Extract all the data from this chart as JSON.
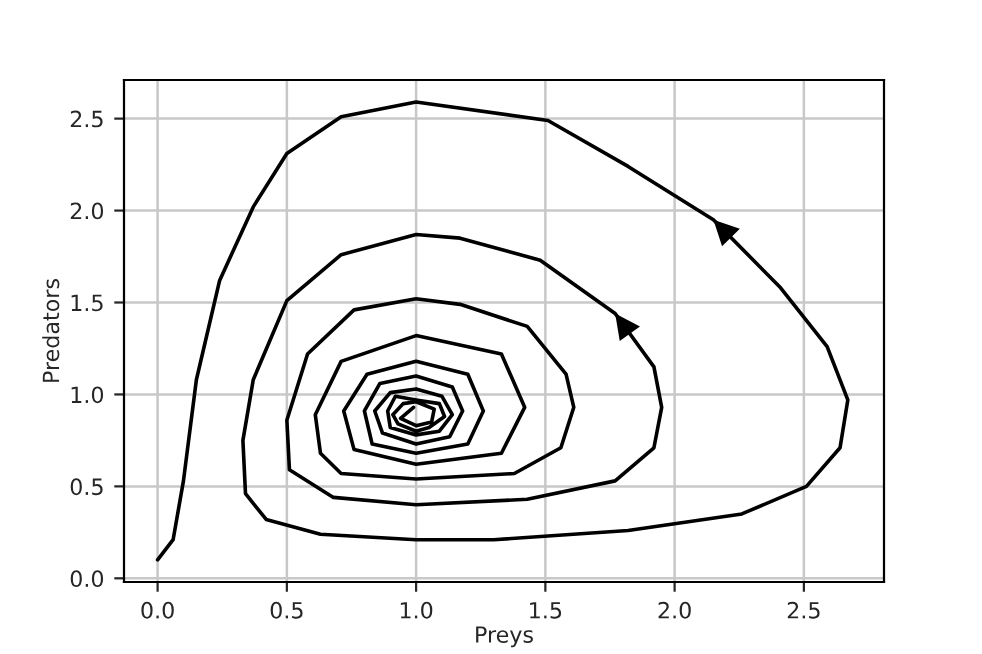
{
  "chart_data": {
    "type": "line",
    "xlabel": "Preys",
    "ylabel": "Predators",
    "xlim": [
      -0.13,
      2.81
    ],
    "ylim": [
      -0.02,
      2.71
    ],
    "xticks": [
      {
        "value": 0,
        "label": "0.0"
      },
      {
        "value": 0.5,
        "label": "0.5"
      },
      {
        "value": 1,
        "label": "1.0"
      },
      {
        "value": 1.5,
        "label": "1.5"
      },
      {
        "value": 2,
        "label": "2.0"
      },
      {
        "value": 2.5,
        "label": "2.5"
      }
    ],
    "yticks": [
      {
        "value": 0,
        "label": "0.0"
      },
      {
        "value": 0.5,
        "label": "0.5"
      },
      {
        "value": 1,
        "label": "1.0"
      },
      {
        "value": 1.5,
        "label": "1.5"
      },
      {
        "value": 2,
        "label": "2.0"
      },
      {
        "value": 2.5,
        "label": "2.5"
      }
    ],
    "grid": true,
    "marker": "none",
    "line_style": "solid",
    "series": [
      {
        "color": "#000000",
        "x": [
          0.0,
          0.06,
          0.1,
          0.15,
          0.24,
          0.37,
          0.5,
          0.71,
          1.0,
          1.51,
          1.82,
          2.15,
          2.41,
          2.59,
          2.67,
          2.64,
          2.51,
          2.26,
          1.82,
          1.3,
          1.0,
          0.63,
          0.42,
          0.34,
          0.33,
          0.37,
          0.5,
          0.71,
          1.0,
          1.17,
          1.48,
          1.77,
          1.92,
          1.95,
          1.92,
          1.77,
          1.43,
          1.0,
          0.68,
          0.51,
          0.5,
          0.58,
          0.76,
          1.0,
          1.17,
          1.43,
          1.58,
          1.61,
          1.56,
          1.38,
          1.0,
          0.71,
          0.63,
          0.61,
          0.71,
          1.0,
          1.33,
          1.42,
          1.33,
          1.0,
          0.76,
          0.72,
          0.81,
          1.0,
          1.2,
          1.26,
          1.2,
          1.0,
          0.83,
          0.8,
          0.86,
          1.0,
          1.14,
          1.18,
          1.13,
          1.0,
          0.87,
          0.84,
          0.9,
          1.0,
          1.1,
          1.14,
          1.09,
          1.0,
          0.9,
          0.89,
          0.92,
          1.0,
          1.09,
          1.11,
          1.05,
          1.0,
          0.93,
          0.91,
          0.95,
          1.0,
          1.07,
          1.06,
          1.0,
          0.94,
          0.99
        ],
        "values": [
          0.1,
          0.21,
          0.53,
          1.08,
          1.62,
          2.02,
          2.31,
          2.51,
          2.59,
          2.49,
          2.24,
          1.95,
          1.58,
          1.26,
          0.97,
          0.71,
          0.5,
          0.35,
          0.26,
          0.21,
          0.21,
          0.24,
          0.32,
          0.46,
          0.75,
          1.08,
          1.51,
          1.76,
          1.87,
          1.85,
          1.73,
          1.44,
          1.15,
          0.93,
          0.71,
          0.53,
          0.43,
          0.4,
          0.44,
          0.59,
          0.86,
          1.22,
          1.46,
          1.52,
          1.49,
          1.37,
          1.11,
          0.93,
          0.71,
          0.57,
          0.54,
          0.57,
          0.68,
          0.89,
          1.18,
          1.32,
          1.22,
          0.93,
          0.68,
          0.62,
          0.7,
          0.91,
          1.11,
          1.18,
          1.11,
          0.91,
          0.73,
          0.68,
          0.73,
          0.91,
          1.06,
          1.1,
          1.04,
          0.91,
          0.77,
          0.73,
          0.79,
          0.91,
          1.01,
          1.03,
          0.99,
          0.89,
          0.8,
          0.78,
          0.82,
          0.91,
          0.99,
          0.97,
          0.95,
          0.88,
          0.82,
          0.8,
          0.84,
          0.89,
          0.95,
          0.96,
          0.92,
          0.85,
          0.83,
          0.87,
          0.93
        ]
      }
    ]
  }
}
